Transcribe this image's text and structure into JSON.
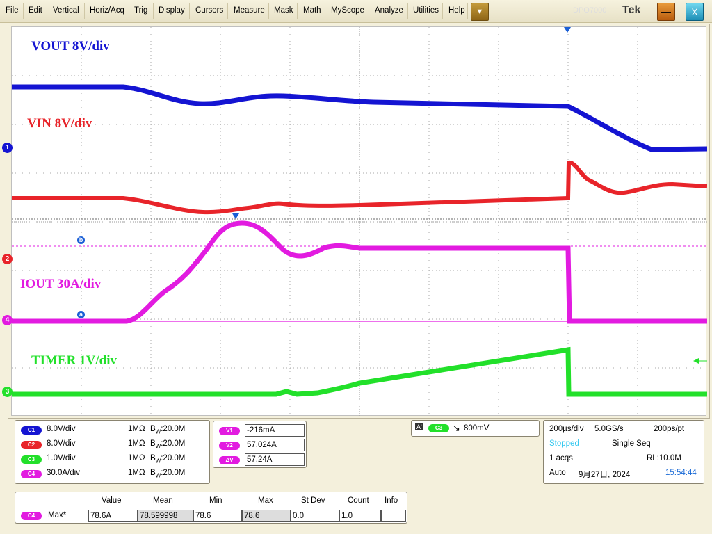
{
  "menu": [
    "File",
    "Edit",
    "Vertical",
    "Horiz/Acq",
    "Trig",
    "Display",
    "Cursors",
    "Measure",
    "Mask",
    "Math",
    "MyScope",
    "Analyze",
    "Utilities",
    "Help"
  ],
  "menu_dropdown_glyph": "▼",
  "brand": "Tek",
  "title_ghost": "DPO7000",
  "minimize_glyph": "—",
  "close_glyph": "X",
  "traces": {
    "vout_label": "VOUT 8V/div",
    "vin_label": "VIN 8V/div",
    "iout_label": "IOUT 30A/div",
    "timer_label": "TIMER 1V/div"
  },
  "colors": {
    "ch1": "#1414d2",
    "ch2": "#e8242a",
    "ch3": "#22e02a",
    "ch4": "#e21be0"
  },
  "channel_markers": [
    "1",
    "2",
    "4",
    "3"
  ],
  "cursor_labels": {
    "a": "a",
    "b": "b"
  },
  "channels": [
    {
      "badge": "C1",
      "scale": "8.0V/div",
      "imp": "1MΩ",
      "bw_prefix": "B",
      "bw_sub": "W",
      "bw": ":20.0M"
    },
    {
      "badge": "C2",
      "scale": "8.0V/div",
      "imp": "1MΩ",
      "bw_prefix": "B",
      "bw_sub": "W",
      "bw": ":20.0M"
    },
    {
      "badge": "C3",
      "scale": "1.0V/div",
      "imp": "1MΩ",
      "bw_prefix": "B",
      "bw_sub": "W",
      "bw": ":20.0M"
    },
    {
      "badge": "C4",
      "scale": "30.0A/div",
      "imp": "1MΩ",
      "bw_prefix": "B",
      "bw_sub": "W",
      "bw": ":20.0M"
    }
  ],
  "cursors": [
    {
      "badge": "V1",
      "value": "-216mA"
    },
    {
      "badge": "V2",
      "value": "57.024A"
    },
    {
      "badge": "ΔV",
      "value": "57.24A"
    }
  ],
  "trigger": {
    "a": "A'",
    "source": "C3",
    "slope": "↘",
    "level": "800mV"
  },
  "acq": {
    "timebase": "200µs/div",
    "rate": "5.0GS/s",
    "res": "200ps/pt",
    "state": "Stopped",
    "mode": "Single Seq",
    "acqs": "1 acqs",
    "rl": "RL:10.0M",
    "auto": "Auto",
    "date": "9月27日, 2024",
    "time": "15:54:44"
  },
  "measure": {
    "headers": [
      "Value",
      "Mean",
      "Min",
      "Max",
      "St Dev",
      "Count",
      "Info"
    ],
    "badge": "C4",
    "name": "Max*",
    "values": [
      "78.6A",
      "78.599998",
      "78.6",
      "78.6",
      "0.0",
      "1.0",
      ""
    ]
  }
}
